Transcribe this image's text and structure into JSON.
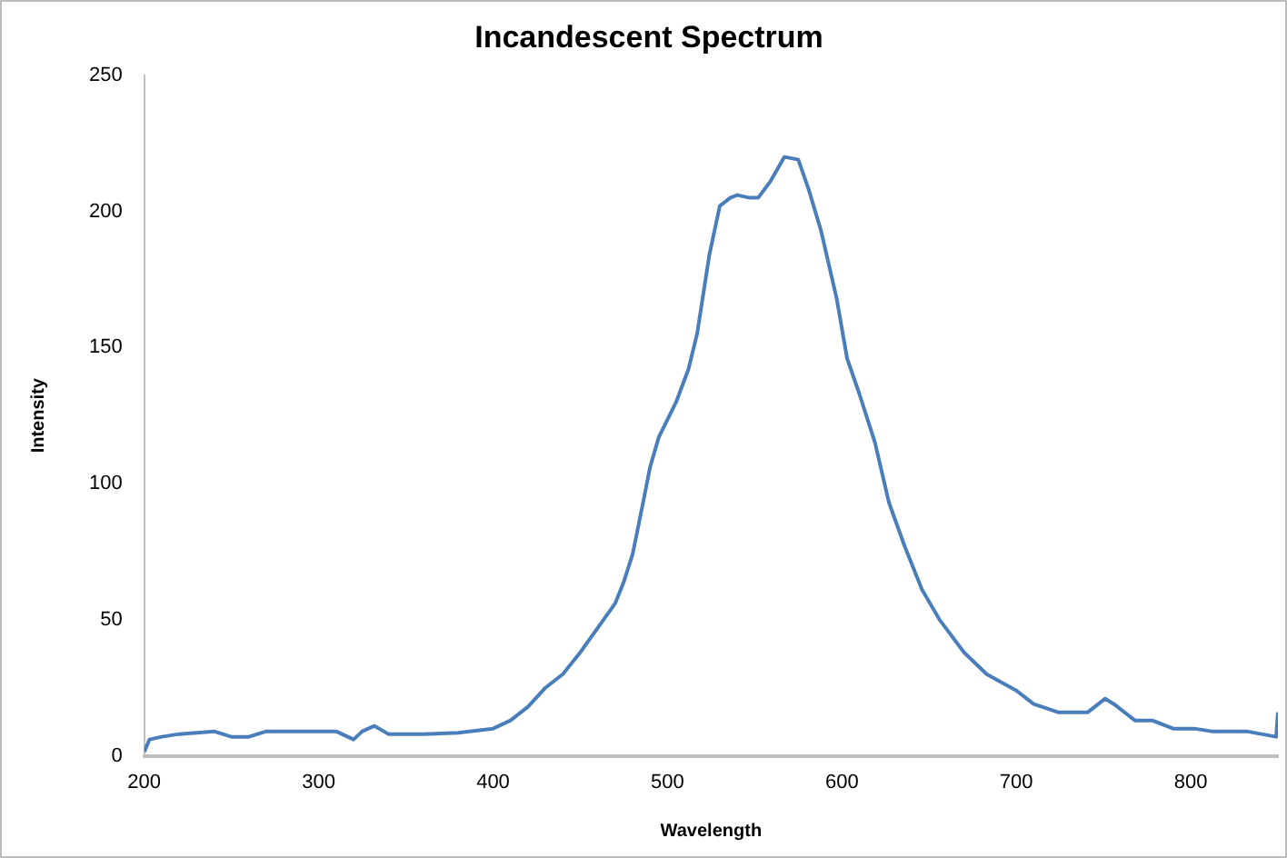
{
  "chart_data": {
    "type": "line",
    "title": "Incandescent Spectrum",
    "xlabel": "Wavelength",
    "ylabel": "Intensity",
    "x": [
      200,
      203,
      210,
      220,
      240,
      250,
      260,
      270,
      300,
      310,
      320,
      325,
      332,
      340,
      360,
      380,
      400,
      410,
      420,
      430,
      440,
      450,
      460,
      470,
      475,
      480,
      486,
      490,
      495,
      505,
      512,
      517,
      524,
      530,
      536,
      540,
      547,
      552,
      559,
      567,
      575,
      581,
      588,
      597,
      603,
      610,
      619,
      627,
      636,
      646,
      656,
      670,
      683,
      700,
      710,
      724,
      741,
      751,
      756,
      768,
      778,
      790,
      802,
      812,
      832,
      849,
      850
    ],
    "series": [
      {
        "color": "#4a7ebb",
        "values": [
          1.5,
          6,
          7,
          8,
          9,
          7,
          7,
          9,
          9,
          9,
          6,
          9,
          11,
          8,
          8,
          8.5,
          10,
          13,
          18,
          25,
          30,
          38,
          47,
          56,
          64,
          74,
          93,
          106,
          117,
          130,
          142,
          155,
          184,
          202,
          205,
          206,
          205,
          205,
          211,
          220,
          219,
          208,
          193,
          168,
          146,
          133,
          115,
          93,
          77,
          61,
          50,
          38,
          30,
          24,
          19,
          16,
          16,
          21,
          19,
          13,
          13,
          10,
          10,
          9,
          9,
          7,
          16
        ]
      }
    ],
    "xlim": [
      200,
      850
    ],
    "xticks": [
      200,
      300,
      400,
      500,
      600,
      700,
      800
    ],
    "ylim": [
      0,
      250
    ],
    "yticks": [
      0,
      50,
      100,
      150,
      200,
      250
    ],
    "grid": false,
    "legend": false,
    "marker": "none",
    "line_style": "solid"
  }
}
